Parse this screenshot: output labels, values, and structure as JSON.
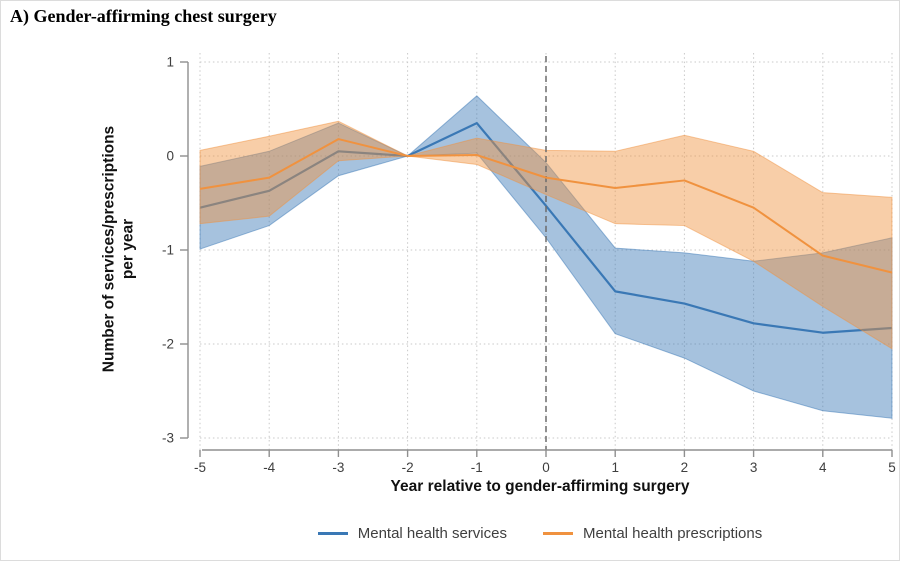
{
  "title": "A) Gender-affirming chest surgery",
  "colors": {
    "services_line": "#3a78b5",
    "prescriptions_line": "#f0923f",
    "band_fill_opacity": "0.45",
    "axis": "#8f8f8f",
    "gridline": "#c9c9c9",
    "reference_line": "#6b6b6b",
    "tick_label": "#3f3f3f"
  },
  "chart_data": {
    "type": "line",
    "title": "A) Gender-affirming chest surgery",
    "xlabel": "Year relative to gender-affirming surgery",
    "ylabel": "Number of services/prescriptions per year",
    "ylabel_lines": [
      "Number of services/prescriptions",
      "per year"
    ],
    "x": [
      -5,
      -4,
      -3,
      -2,
      -1,
      0,
      1,
      2,
      3,
      4,
      5
    ],
    "x_ticks": [
      "-5",
      "-4",
      "-3",
      "-2",
      "-1",
      "0",
      "1",
      "2",
      "3",
      "4",
      "5"
    ],
    "y_ticks": [
      "1",
      "0",
      "-1",
      "-2",
      "-3"
    ],
    "y_tick_values": [
      1,
      0,
      -1,
      -2,
      -3
    ],
    "xlim": [
      -5,
      5
    ],
    "ylim": [
      -3,
      1
    ],
    "grid": "dotted-both-axes",
    "legend_position": "bottom-center",
    "reference_line_x": 0,
    "reference_year_note": "all estimates equal 0 at year -2",
    "series": [
      {
        "name": "Mental health services",
        "color": "#3a78b5",
        "values": [
          -0.55,
          -0.37,
          0.05,
          0,
          0.35,
          -0.53,
          -1.44,
          -1.57,
          -1.78,
          -1.88,
          -1.83
        ],
        "ci_upper": [
          -0.11,
          0.05,
          0.35,
          0,
          0.64,
          -0.07,
          -0.98,
          -1.03,
          -1.12,
          -1.03,
          -0.87
        ],
        "ci_lower": [
          -0.99,
          -0.74,
          -0.21,
          0,
          0.03,
          -0.87,
          -1.89,
          -2.15,
          -2.5,
          -2.71,
          -2.79
        ]
      },
      {
        "name": "Mental health prescriptions",
        "color": "#f0923f",
        "values": [
          -0.35,
          -0.23,
          0.18,
          0,
          0.01,
          -0.23,
          -0.34,
          -0.26,
          -0.55,
          -1.06,
          -1.24
        ],
        "ci_upper": [
          0.06,
          0.21,
          0.37,
          0,
          0.19,
          0.06,
          0.05,
          0.22,
          0.05,
          -0.39,
          -0.44
        ],
        "ci_lower": [
          -0.72,
          -0.64,
          -0.05,
          0,
          -0.09,
          -0.41,
          -0.72,
          -0.74,
          -1.12,
          -1.6,
          -2.05
        ]
      }
    ]
  }
}
